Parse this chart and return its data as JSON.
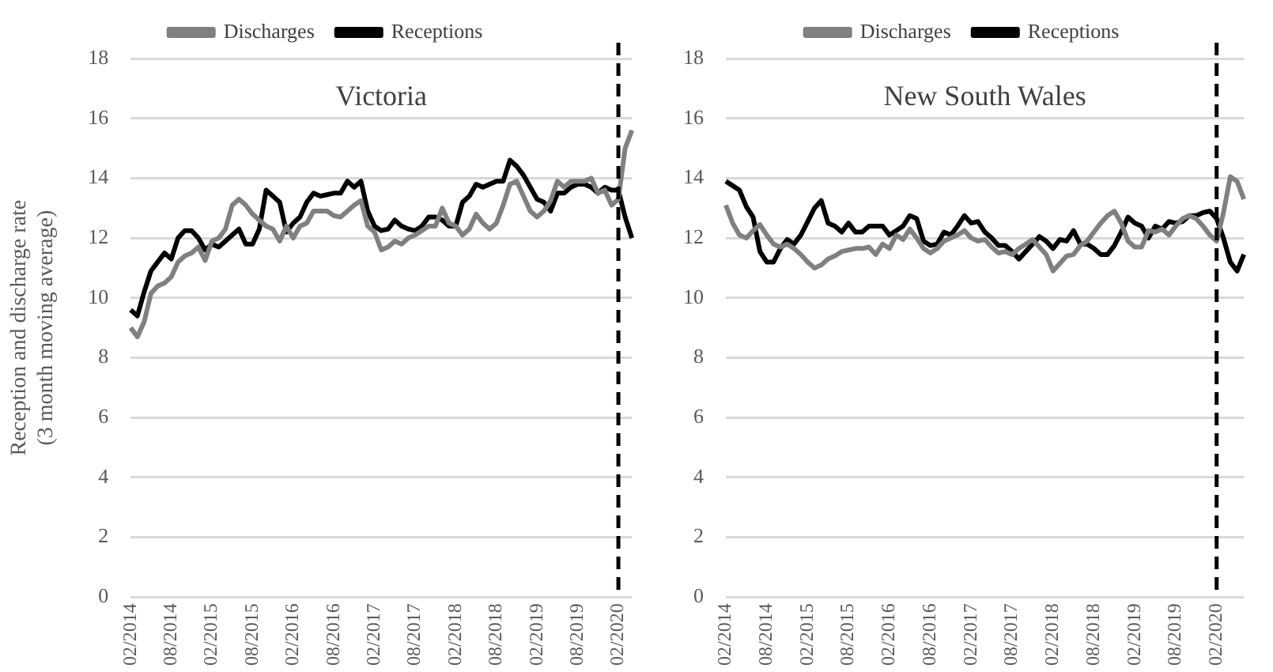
{
  "chart_data": [
    {
      "type": "line",
      "title": "Victoria",
      "ylabel": "Reception and discharge rate\n(3 month moving average)",
      "categories": [
        "02/2014",
        null,
        null,
        null,
        null,
        null,
        "08/2014",
        null,
        null,
        null,
        null,
        null,
        "02/2015",
        null,
        null,
        null,
        null,
        null,
        "08/2015",
        null,
        null,
        null,
        null,
        null,
        "02/2016",
        null,
        null,
        null,
        null,
        null,
        "08/2016",
        null,
        null,
        null,
        null,
        null,
        "02/2017",
        null,
        null,
        null,
        null,
        null,
        "08/2017",
        null,
        null,
        null,
        null,
        null,
        "02/2018",
        null,
        null,
        null,
        null,
        null,
        "08/2018",
        null,
        null,
        null,
        null,
        null,
        "02/2019",
        null,
        null,
        null,
        null,
        null,
        "08/2019",
        null,
        null,
        null,
        null,
        null,
        "02/2020",
        null,
        null
      ],
      "series": [
        {
          "name": "Discharges",
          "color": "#808080",
          "values": [
            9.0,
            8.7,
            9.2,
            10.15,
            10.4,
            10.5,
            10.7,
            11.2,
            11.4,
            11.5,
            11.7,
            11.25,
            11.9,
            12.0,
            12.3,
            13.1,
            13.3,
            13.1,
            12.8,
            12.6,
            12.4,
            12.3,
            11.9,
            12.4,
            12.0,
            12.4,
            12.5,
            12.9,
            12.9,
            12.9,
            12.75,
            12.7,
            12.9,
            13.1,
            13.25,
            12.4,
            12.2,
            11.6,
            11.7,
            11.9,
            11.8,
            12.0,
            12.1,
            12.25,
            12.4,
            12.4,
            13.0,
            12.5,
            12.4,
            12.1,
            12.3,
            12.8,
            12.5,
            12.3,
            12.5,
            13.1,
            13.8,
            13.9,
            13.4,
            12.9,
            12.7,
            12.9,
            13.25,
            13.9,
            13.7,
            13.9,
            13.9,
            13.9,
            14.0,
            13.5,
            13.6,
            13.1,
            13.3,
            15.0,
            15.6
          ]
        },
        {
          "name": "Receptions",
          "color": "#000000",
          "values": [
            9.6,
            9.4,
            10.2,
            10.9,
            11.2,
            11.5,
            11.3,
            12.0,
            12.25,
            12.25,
            12.0,
            11.6,
            11.8,
            11.7,
            11.9,
            12.1,
            12.3,
            11.8,
            11.8,
            12.3,
            13.6,
            13.4,
            13.2,
            12.2,
            12.5,
            12.7,
            13.2,
            13.5,
            13.4,
            13.45,
            13.5,
            13.5,
            13.9,
            13.7,
            13.9,
            12.9,
            12.4,
            12.25,
            12.3,
            12.6,
            12.4,
            12.3,
            12.25,
            12.4,
            12.7,
            12.7,
            12.6,
            12.4,
            12.4,
            13.2,
            13.4,
            13.8,
            13.7,
            13.8,
            13.9,
            13.9,
            14.6,
            14.4,
            14.1,
            13.7,
            13.3,
            13.2,
            12.9,
            13.5,
            13.5,
            13.7,
            13.8,
            13.8,
            13.7,
            13.5,
            13.7,
            13.6,
            13.6,
            12.7,
            12.0
          ]
        }
      ],
      "ylim": [
        0,
        18
      ],
      "yticks": [
        0,
        2,
        4,
        6,
        8,
        10,
        12,
        14,
        16,
        18
      ],
      "grid": "y",
      "legend": "top",
      "marker": "none",
      "line_style": "solid",
      "ref_lines": [
        {
          "axis": "x",
          "value": "02/2020",
          "line_style": "dashed",
          "color": "#000000"
        }
      ]
    },
    {
      "type": "line",
      "title": "New South Wales",
      "categories": [
        "02/2014",
        null,
        null,
        null,
        null,
        null,
        "08/2014",
        null,
        null,
        null,
        null,
        null,
        "02/2015",
        null,
        null,
        null,
        null,
        null,
        "08/2015",
        null,
        null,
        null,
        null,
        null,
        "02/2016",
        null,
        null,
        null,
        null,
        null,
        "08/2016",
        null,
        null,
        null,
        null,
        null,
        "02/2017",
        null,
        null,
        null,
        null,
        null,
        "08/2017",
        null,
        null,
        null,
        null,
        null,
        "02/2018",
        null,
        null,
        null,
        null,
        null,
        "08/2018",
        null,
        null,
        null,
        null,
        null,
        "02/2019",
        null,
        null,
        null,
        null,
        null,
        "08/2019",
        null,
        null,
        null,
        null,
        null,
        "02/2020",
        null,
        null,
        null,
        null
      ],
      "series": [
        {
          "name": "Discharges",
          "color": "#808080",
          "values": [
            13.1,
            12.5,
            12.1,
            12.0,
            12.25,
            12.45,
            12.1,
            11.8,
            11.7,
            11.8,
            11.65,
            11.45,
            11.2,
            11.0,
            11.1,
            11.3,
            11.4,
            11.55,
            11.6,
            11.65,
            11.65,
            11.7,
            11.45,
            11.8,
            11.65,
            12.1,
            11.95,
            12.3,
            12.0,
            11.65,
            11.5,
            11.65,
            11.9,
            12.0,
            12.1,
            12.25,
            12.0,
            11.9,
            11.95,
            11.7,
            11.5,
            11.55,
            11.45,
            11.65,
            11.8,
            11.95,
            11.7,
            11.45,
            10.9,
            11.15,
            11.4,
            11.45,
            11.75,
            11.9,
            12.2,
            12.5,
            12.75,
            12.9,
            12.5,
            11.9,
            11.7,
            11.7,
            12.25,
            12.2,
            12.3,
            12.1,
            12.4,
            12.65,
            12.75,
            12.65,
            12.4,
            12.1,
            11.9,
            12.85,
            14.05,
            13.9,
            13.3
          ]
        },
        {
          "name": "Receptions",
          "color": "#000000",
          "values": [
            13.9,
            13.75,
            13.6,
            13.05,
            12.7,
            11.55,
            11.2,
            11.2,
            11.65,
            11.95,
            11.8,
            12.1,
            12.55,
            13.0,
            13.25,
            12.5,
            12.4,
            12.2,
            12.5,
            12.2,
            12.2,
            12.4,
            12.4,
            12.4,
            12.1,
            12.25,
            12.4,
            12.75,
            12.65,
            11.9,
            11.75,
            11.8,
            12.2,
            12.1,
            12.4,
            12.75,
            12.5,
            12.55,
            12.2,
            12.0,
            11.75,
            11.75,
            11.55,
            11.3,
            11.55,
            11.8,
            12.05,
            11.9,
            11.65,
            11.95,
            11.9,
            12.25,
            11.8,
            11.8,
            11.65,
            11.45,
            11.45,
            11.75,
            12.2,
            12.7,
            12.5,
            12.4,
            12.0,
            12.4,
            12.3,
            12.55,
            12.5,
            12.55,
            12.75,
            12.75,
            12.85,
            12.9,
            12.65,
            12.0,
            11.2,
            10.9,
            11.45
          ]
        }
      ],
      "ylim": [
        0,
        18
      ],
      "yticks": [
        0,
        2,
        4,
        6,
        8,
        10,
        12,
        14,
        16,
        18
      ],
      "grid": "y",
      "legend": "top",
      "marker": "none",
      "line_style": "solid",
      "ref_lines": [
        {
          "axis": "x",
          "value": "02/2020",
          "line_style": "dashed",
          "color": "#000000"
        }
      ]
    }
  ]
}
